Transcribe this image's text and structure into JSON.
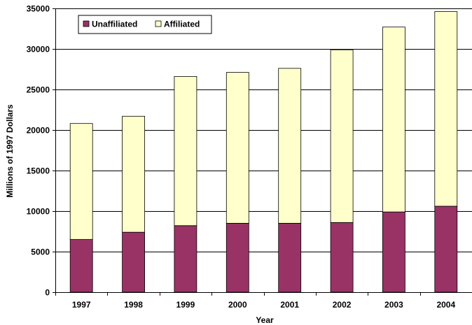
{
  "chart_data": {
    "type": "bar",
    "stacked": true,
    "title": "",
    "xlabel": "Year",
    "ylabel": "Millions of 1997 Dollars",
    "ylim": [
      0,
      35000
    ],
    "yticks": [
      0,
      5000,
      10000,
      15000,
      20000,
      25000,
      30000,
      35000
    ],
    "grid": true,
    "legend_position": "top-left",
    "categories": [
      "1997",
      "1998",
      "1999",
      "2000",
      "2001",
      "2002",
      "2003",
      "2004"
    ],
    "series": [
      {
        "name": "Unaffiliated",
        "color": "#993366",
        "values": [
          6500,
          7400,
          8200,
          8500,
          8500,
          8600,
          9900,
          10600
        ]
      },
      {
        "name": "Affiliated",
        "color": "#FFFFCC",
        "values": [
          14300,
          14300,
          18400,
          18600,
          19100,
          21300,
          22800,
          24000
        ]
      }
    ]
  }
}
